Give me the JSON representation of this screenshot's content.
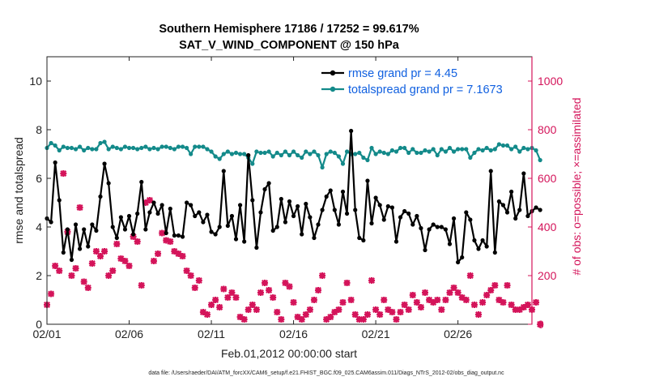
{
  "chart_data": {
    "type": "line",
    "title": "Southern Hemisphere 17186 / 17252 = 99.617%",
    "subtitle": "SAT_V_WIND_COMPONENT @ 150 hPa",
    "xlabel": "Feb.01,2012 00:00:00 start",
    "ylabel": "rmse and totalspread",
    "y2label": "# of obs: o=possible; ×=assimilated",
    "footer": "data file: /Users/raeder/DAI/ATM_forcXX/CAM6_setup/f.e21.FHIST_BGC.f09_025.CAM6assim.011/Diags_NTrS_2012-02/obs_diag_output.nc",
    "x_tick_labels": [
      "02/01",
      "02/06",
      "02/11",
      "02/16",
      "02/21",
      "02/26"
    ],
    "x_tick_days": [
      0,
      5,
      10,
      15,
      20,
      25
    ],
    "xlim_days": [
      0,
      29.5
    ],
    "ylim": [
      0,
      11
    ],
    "y_ticks": [
      0,
      2,
      4,
      6,
      8,
      10
    ],
    "y2lim": [
      0,
      1100
    ],
    "y2_ticks": [
      0,
      200,
      400,
      600,
      800,
      1000
    ],
    "legend_placement": "top-right",
    "grid": false,
    "colors": {
      "rmse": "#000000",
      "totalspread": "#138a8a",
      "obs": "#d4145a",
      "legend_text": "#1060e0",
      "right_axis": "#d4145a"
    },
    "series": [
      {
        "name": "rmse grand pr = 4.45",
        "axis": "left",
        "start_day": 0.0,
        "step_days": 0.25,
        "values": [
          4.35,
          4.2,
          6.65,
          5.1,
          2.95,
          3.9,
          2.65,
          4.1,
          3.1,
          3.9,
          3.2,
          4.1,
          3.85,
          5.25,
          6.6,
          5.8,
          4.0,
          3.55,
          4.4,
          3.9,
          4.45,
          3.7,
          4.55,
          5.85,
          3.9,
          4.6,
          5.0,
          4.55,
          4.9,
          3.75,
          4.75,
          3.65,
          3.65,
          3.6,
          5.0,
          4.9,
          4.45,
          4.6,
          4.2,
          4.5,
          3.8,
          3.7,
          4.0,
          6.3,
          4.05,
          4.45,
          3.5,
          4.9,
          3.4,
          6.95,
          5.1,
          3.15,
          4.6,
          5.55,
          5.8,
          3.85,
          4.0,
          5.15,
          4.2,
          5.05,
          4.45,
          4.85,
          3.7,
          4.95,
          4.4,
          3.55,
          4.1,
          4.7,
          5.25,
          5.5,
          4.7,
          4.1,
          5.45,
          4.55,
          7.95,
          4.7,
          3.55,
          3.45,
          5.9,
          4.15,
          5.2,
          4.9,
          4.3,
          4.85,
          4.8,
          3.4,
          4.4,
          4.65,
          4.55,
          4.1,
          4.45,
          3.95,
          3.05,
          3.9,
          4.1,
          4.0,
          4.0,
          3.9,
          3.3,
          4.35,
          2.55,
          2.75,
          4.6,
          4.3,
          3.45,
          3.1,
          3.45,
          3.2,
          6.3,
          2.95,
          5.05,
          4.9,
          4.6,
          5.45,
          4.35,
          4.7,
          6.2,
          4.45,
          4.65,
          4.8,
          4.7
        ]
      },
      {
        "name": "totalspread grand pr = 7.1673",
        "axis": "left",
        "start_day": 0.0,
        "step_days": 0.25,
        "values": [
          7.25,
          7.45,
          7.35,
          7.15,
          7.3,
          7.25,
          7.25,
          7.2,
          7.3,
          7.15,
          7.25,
          7.2,
          7.2,
          7.45,
          7.5,
          7.2,
          7.3,
          7.25,
          7.2,
          7.3,
          7.25,
          7.25,
          7.2,
          7.25,
          7.3,
          7.2,
          7.25,
          7.2,
          7.3,
          7.3,
          7.25,
          7.2,
          7.3,
          7.3,
          7.25,
          7.0,
          7.3,
          7.3,
          7.3,
          7.2,
          7.1,
          6.9,
          6.8,
          7.0,
          7.1,
          7.0,
          7.05,
          7.0,
          7.0,
          6.85,
          6.6,
          7.1,
          7.05,
          7.05,
          7.1,
          6.9,
          7.05,
          6.95,
          7.1,
          6.95,
          7.1,
          6.95,
          6.85,
          7.1,
          7.0,
          7.1,
          6.95,
          6.45,
          7.0,
          7.1,
          7.05,
          6.9,
          6.6,
          7.1,
          7.0,
          7.0,
          7.05,
          6.85,
          6.75,
          7.25,
          7.0,
          7.1,
          7.05,
          7.0,
          7.15,
          7.1,
          7.25,
          7.25,
          7.05,
          7.2,
          7.05,
          7.05,
          7.15,
          7.1,
          7.2,
          6.95,
          7.2,
          7.1,
          7.25,
          7.1,
          7.2,
          7.2,
          7.2,
          6.85,
          7.05,
          7.2,
          7.15,
          7.25,
          7.15,
          7.2,
          7.4,
          7.35,
          7.35,
          7.2,
          7.3,
          7.1,
          7.25,
          7.2,
          7.25,
          7.15,
          6.75
        ]
      },
      {
        "name": "",
        "axis": "right",
        "marker": "x",
        "start_day": 0.0,
        "step_days": 0.25,
        "values": [
          80,
          125,
          240,
          220,
          620,
          380,
          200,
          230,
          480,
          175,
          150,
          250,
          300,
          280,
          300,
          200,
          220,
          330,
          270,
          260,
          240,
          360,
          340,
          160,
          500,
          510,
          260,
          290,
          375,
          345,
          340,
          300,
          290,
          280,
          220,
          200,
          150,
          180,
          50,
          40,
          80,
          100,
          70,
          145,
          110,
          130,
          110,
          30,
          20,
          60,
          80,
          60,
          130,
          170,
          140,
          110,
          50,
          20,
          170,
          155,
          90,
          30,
          20,
          40,
          60,
          100,
          140,
          200,
          20,
          30,
          50,
          60,
          90,
          170,
          100,
          40,
          20,
          20,
          40,
          180,
          60,
          40,
          100,
          60,
          50,
          20,
          50,
          80,
          60,
          120,
          90,
          70,
          130,
          100,
          90,
          100,
          60,
          100,
          130,
          150,
          130,
          110,
          100,
          200,
          80,
          40,
          90,
          120,
          140,
          160,
          100,
          90,
          160,
          80,
          60,
          60,
          70,
          80,
          60,
          90,
          0
        ]
      }
    ]
  }
}
